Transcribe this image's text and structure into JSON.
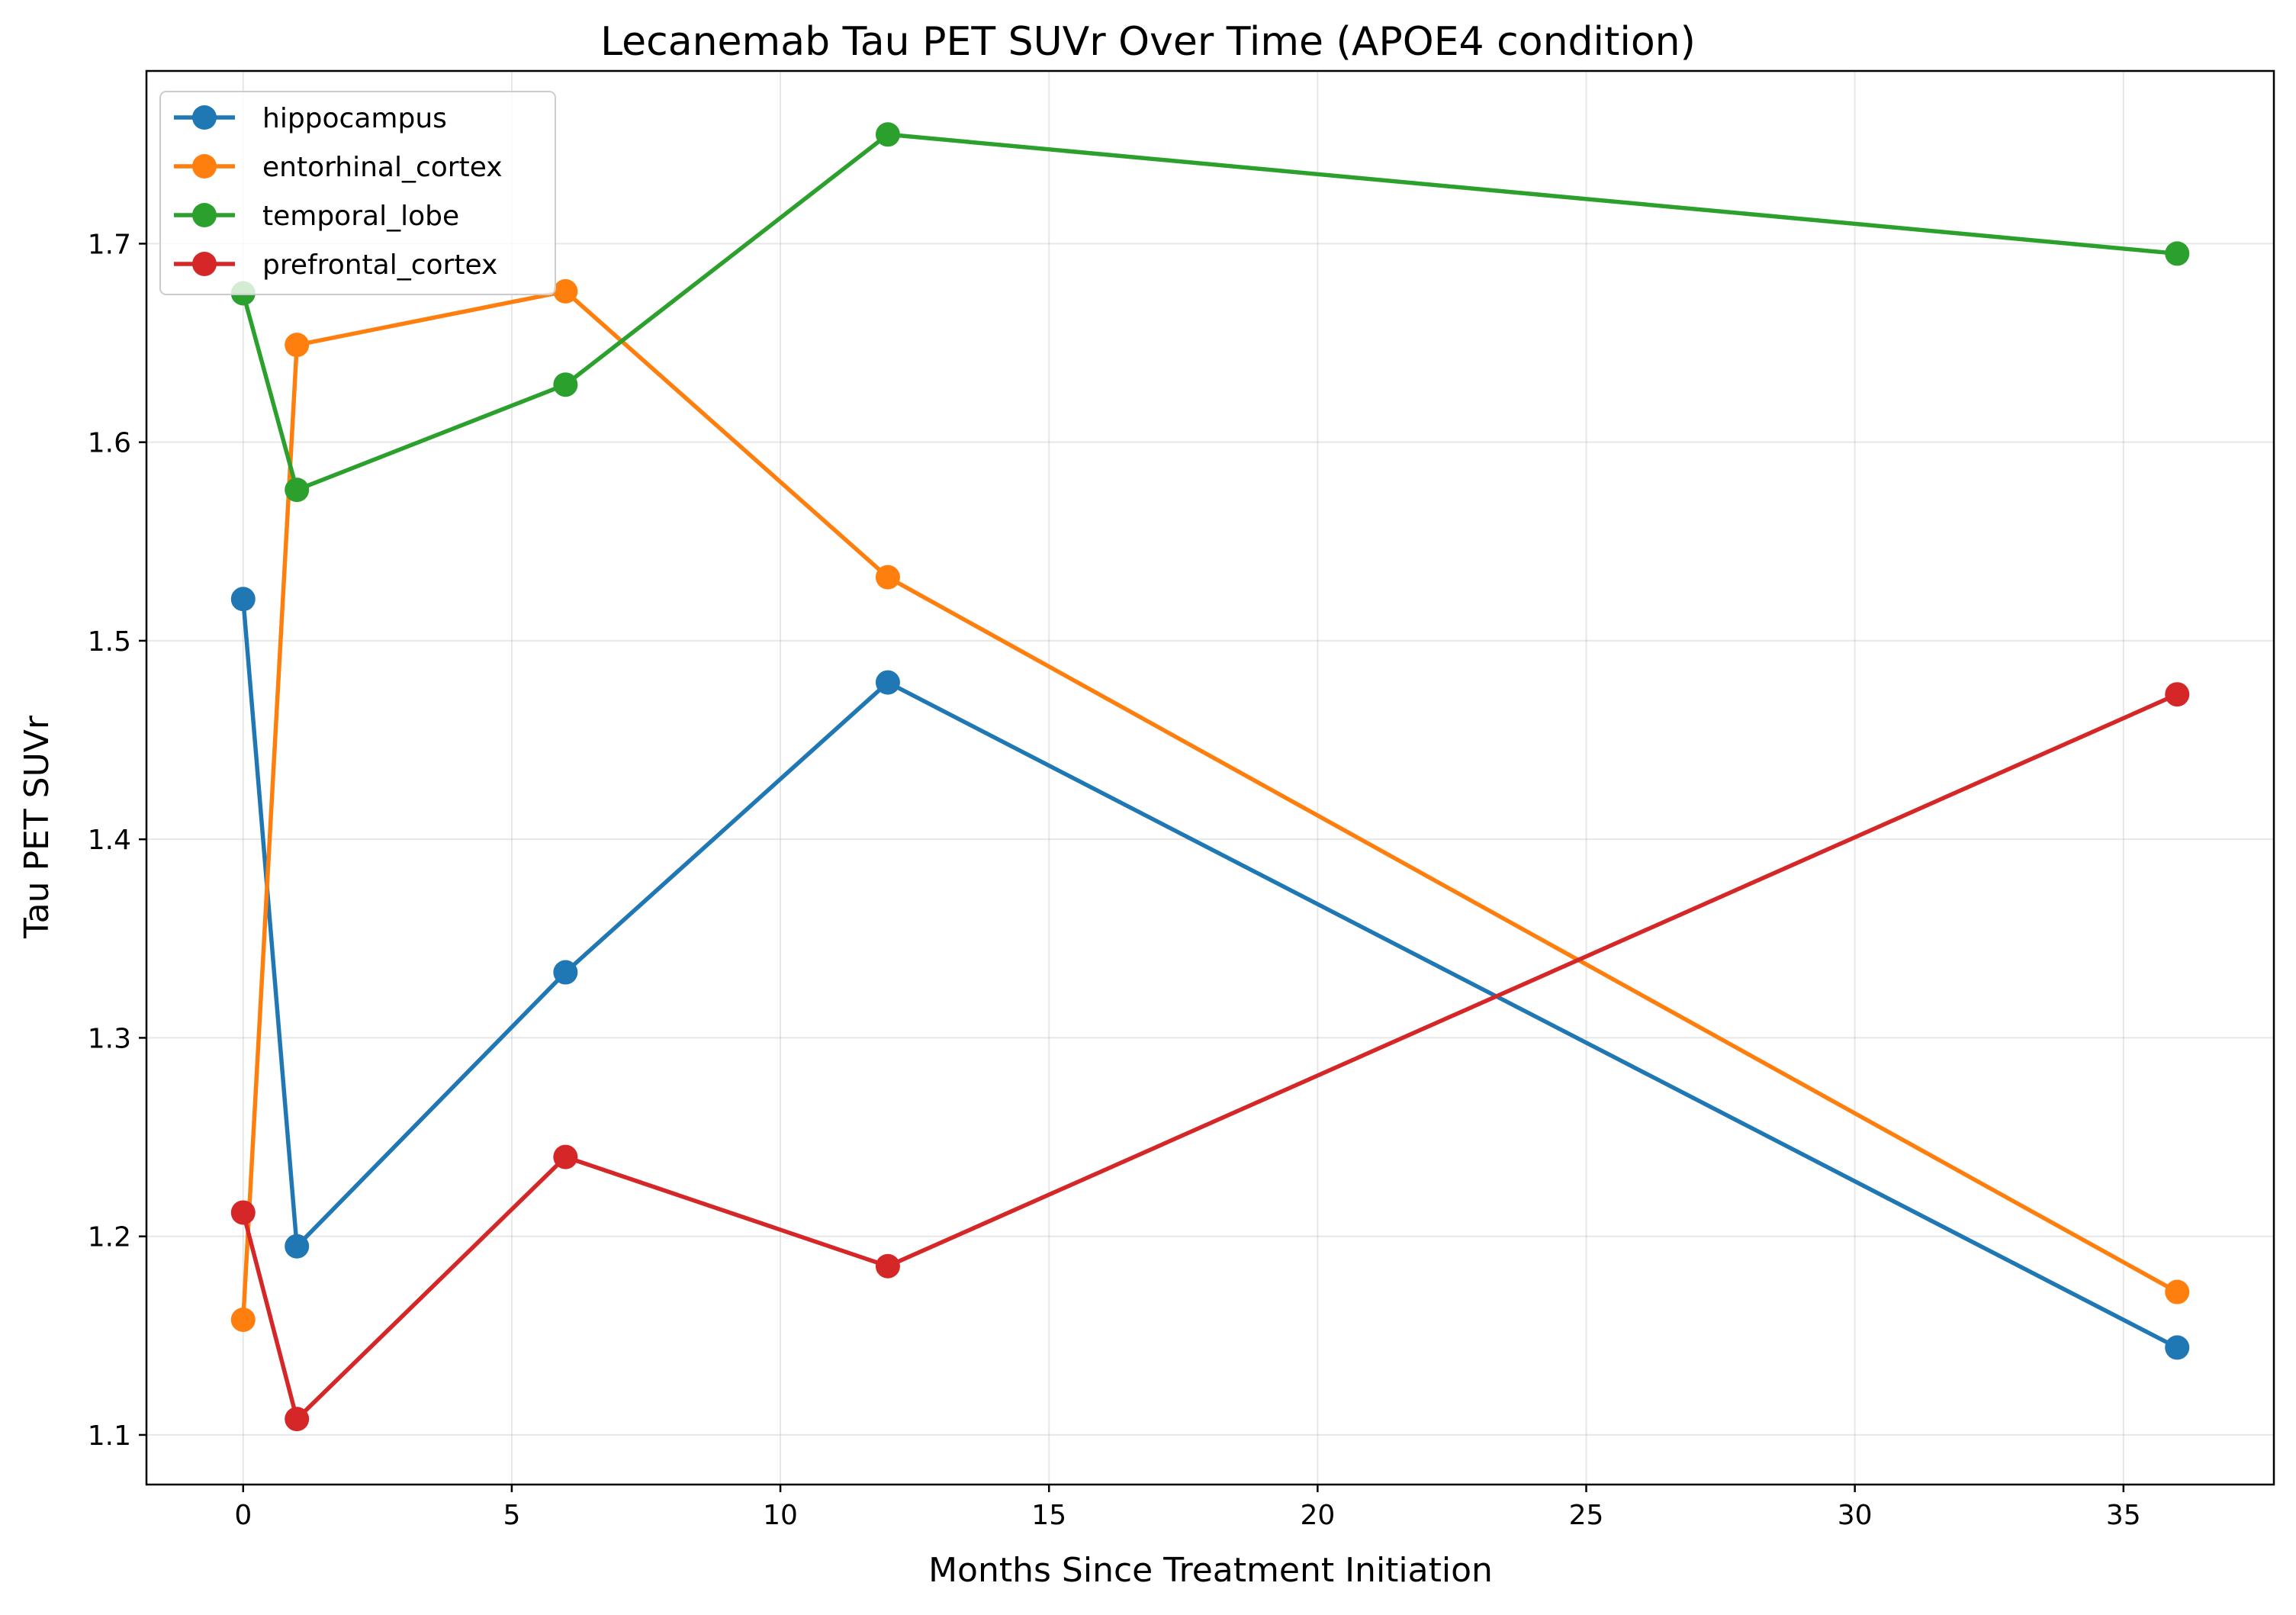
{
  "chart_data": {
    "type": "line",
    "title": "Lecanemab Tau PET SUVr Over Time (APOE4 condition)",
    "xlabel": "Months Since Treatment Initiation",
    "ylabel": "Tau PET SUVr",
    "xlim": [
      -1.8,
      37.8
    ],
    "ylim": [
      1.075,
      1.787
    ],
    "xticks": [
      0,
      5,
      10,
      15,
      20,
      25,
      30,
      35
    ],
    "yticks": [
      1.1,
      1.2,
      1.3,
      1.4,
      1.5,
      1.6,
      1.7
    ],
    "x_tick_labels": [
      "0",
      "5",
      "10",
      "15",
      "20",
      "25",
      "30",
      "35"
    ],
    "y_tick_labels": [
      "1.1",
      "1.2",
      "1.3",
      "1.4",
      "1.5",
      "1.6",
      "1.7"
    ],
    "grid": true,
    "legend_position": "top-left",
    "x": [
      0,
      1,
      6,
      12,
      36
    ],
    "series": [
      {
        "name": "hippocampus",
        "color": "#1f77b4",
        "values": [
          1.521,
          1.195,
          1.333,
          1.479,
          1.144
        ]
      },
      {
        "name": "entorhinal_cortex",
        "color": "#ff7f0e",
        "values": [
          1.158,
          1.649,
          1.676,
          1.532,
          1.172
        ]
      },
      {
        "name": "temporal_lobe",
        "color": "#2ca02c",
        "values": [
          1.675,
          1.576,
          1.629,
          1.755,
          1.695
        ]
      },
      {
        "name": "prefrontal_cortex",
        "color": "#d62728",
        "values": [
          1.212,
          1.108,
          1.24,
          1.185,
          1.473
        ]
      }
    ]
  }
}
